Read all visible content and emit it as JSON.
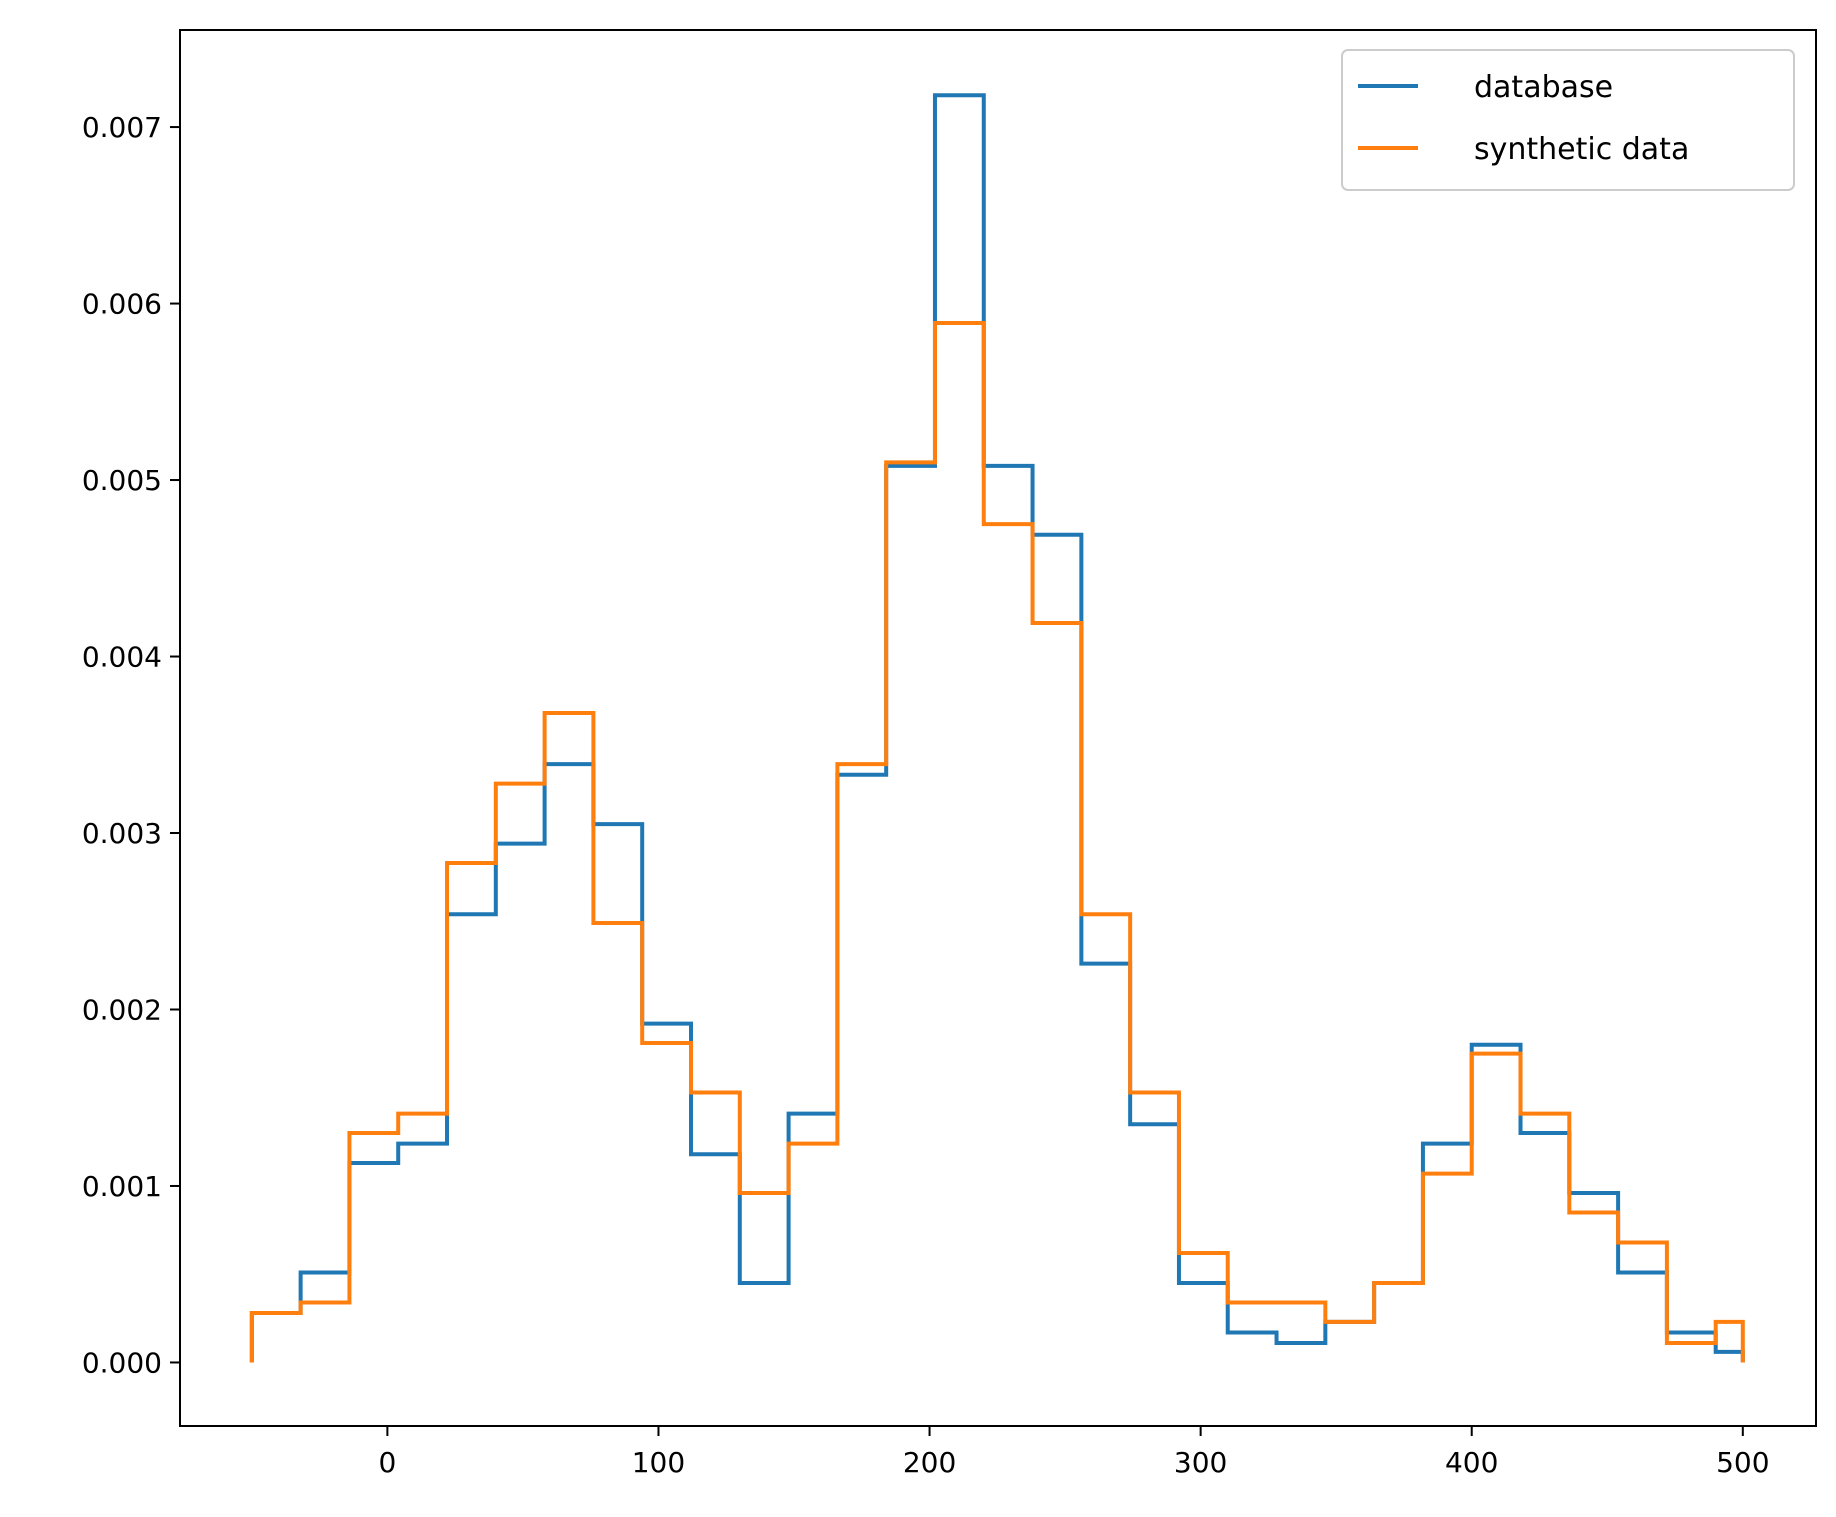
{
  "chart_data": {
    "type": "line",
    "drawstyle": "step",
    "title": "",
    "xlabel": "",
    "ylabel": "",
    "xlim": [
      -76.5,
      527
    ],
    "ylim": [
      -0.00036,
      0.00755
    ],
    "xticks": [
      0,
      100,
      200,
      300,
      400,
      500
    ],
    "xtick_labels": [
      "0",
      "100",
      "200",
      "300",
      "400",
      "500"
    ],
    "yticks": [
      0,
      0.001,
      0.002,
      0.003,
      0.004,
      0.005,
      0.006,
      0.007
    ],
    "ytick_labels": [
      "0.000",
      "0.001",
      "0.002",
      "0.003",
      "0.004",
      "0.005",
      "0.006",
      "0.007"
    ],
    "grid": false,
    "legend_position": "top-right",
    "bin_edges": [
      -50,
      -32,
      -14,
      4,
      22,
      40,
      58,
      76,
      94,
      112,
      130,
      148,
      166,
      184,
      202,
      220,
      238,
      256,
      274,
      292,
      310,
      328,
      346,
      364,
      382,
      400,
      418,
      436,
      454,
      472,
      490,
      500
    ],
    "series": [
      {
        "name": "database",
        "color": "#1f77b4",
        "values": [
          0.00028,
          0.00051,
          0.00113,
          0.00124,
          0.00254,
          0.00294,
          0.00339,
          0.00305,
          0.00192,
          0.00118,
          0.00045,
          0.00141,
          0.00333,
          0.00508,
          0.00718,
          0.00508,
          0.00469,
          0.00226,
          0.00135,
          0.00045,
          0.00017,
          0.00011,
          0.00023,
          0.00045,
          0.00124,
          0.0018,
          0.0013,
          0.00096,
          0.00051,
          0.00017,
          6e-05
        ]
      },
      {
        "name": "synthetic data",
        "color": "#ff7f0e",
        "values": [
          0.00028,
          0.00034,
          0.0013,
          0.00141,
          0.00283,
          0.00328,
          0.00368,
          0.00249,
          0.00181,
          0.00153,
          0.00096,
          0.00124,
          0.00339,
          0.0051,
          0.00589,
          0.00475,
          0.00419,
          0.00254,
          0.00153,
          0.00062,
          0.00034,
          0.00034,
          0.00023,
          0.00045,
          0.00107,
          0.00175,
          0.00141,
          0.00085,
          0.00068,
          0.00011,
          0.00023
        ]
      }
    ]
  }
}
